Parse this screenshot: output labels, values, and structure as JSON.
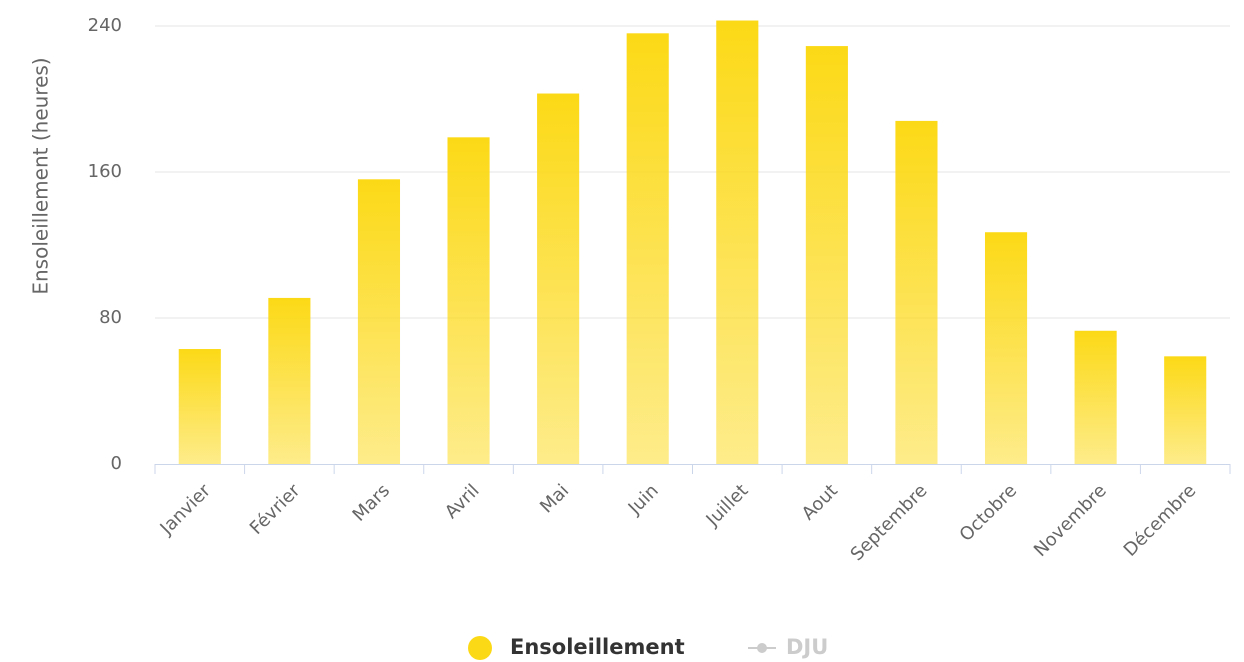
{
  "chart_data": {
    "type": "bar",
    "y_label": "Ensoleillement (heures)",
    "categories": [
      "Janvier",
      "Février",
      "Mars",
      "Avril",
      "Mai",
      "Juin",
      "Juillet",
      "Aout",
      "Septembre",
      "Octobre",
      "Novembre",
      "Décembre"
    ],
    "series": [
      {
        "name": "Ensoleillement",
        "color": "#fcd916",
        "values": [
          63,
          91,
          156,
          179,
          203,
          236,
          243,
          229,
          188,
          127,
          73,
          59
        ]
      },
      {
        "name": "DJU",
        "color": "#cccccc",
        "visible": false,
        "values": [
          null,
          null,
          null,
          null,
          null,
          null,
          null,
          null,
          null,
          null,
          null,
          null
        ]
      }
    ],
    "ylim": [
      0,
      240
    ],
    "yticks": [
      0,
      80,
      160,
      240
    ],
    "grid": true,
    "legend": "bottom"
  }
}
